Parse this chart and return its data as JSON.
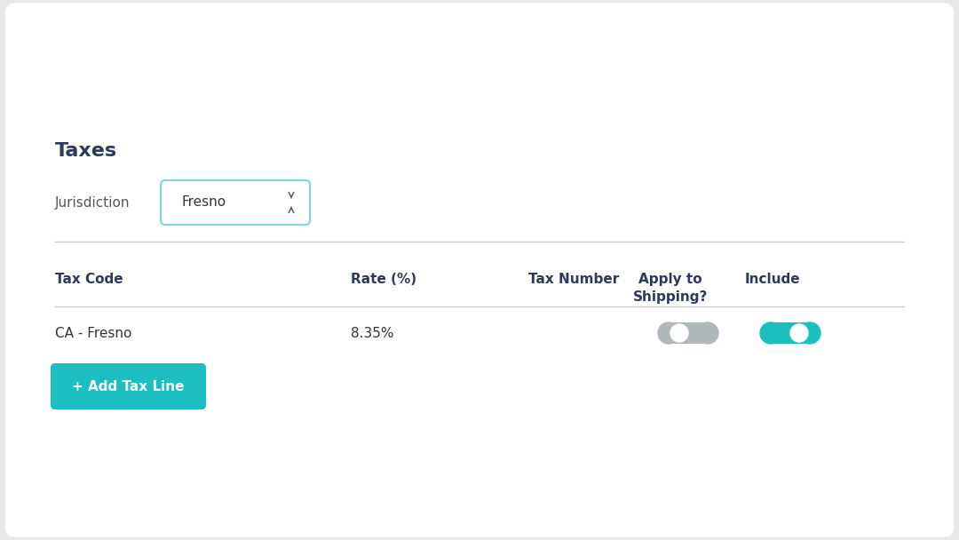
{
  "bg_color": "#e8e8e8",
  "card_color": "#ffffff",
  "title": "Taxes",
  "title_color": "#2d3a5c",
  "title_fontsize": 16,
  "jurisdiction_label": "Jurisdiction",
  "jurisdiction_value": "Fresno",
  "dropdown_border_color": "#7dd6d8",
  "table_headers": [
    "Tax Code",
    "Rate (%)",
    "Tax Number",
    "Apply to\nShipping?",
    "Include"
  ],
  "header_color": "#2d3a5c",
  "header_fontsize": 11,
  "row_tax_code": "CA - Fresno",
  "row_rate": "8.35%",
  "toggle_off_color": "#b0b8bc",
  "toggle_on_color": "#1bbfbf",
  "toggle_knob_color": "#ffffff",
  "add_button_color": "#1bbfbf",
  "add_button_text": "+ Add Tax Line",
  "add_button_text_color": "#ffffff",
  "separator_color": "#cccccc",
  "text_color": "#333333",
  "label_color": "#555555"
}
